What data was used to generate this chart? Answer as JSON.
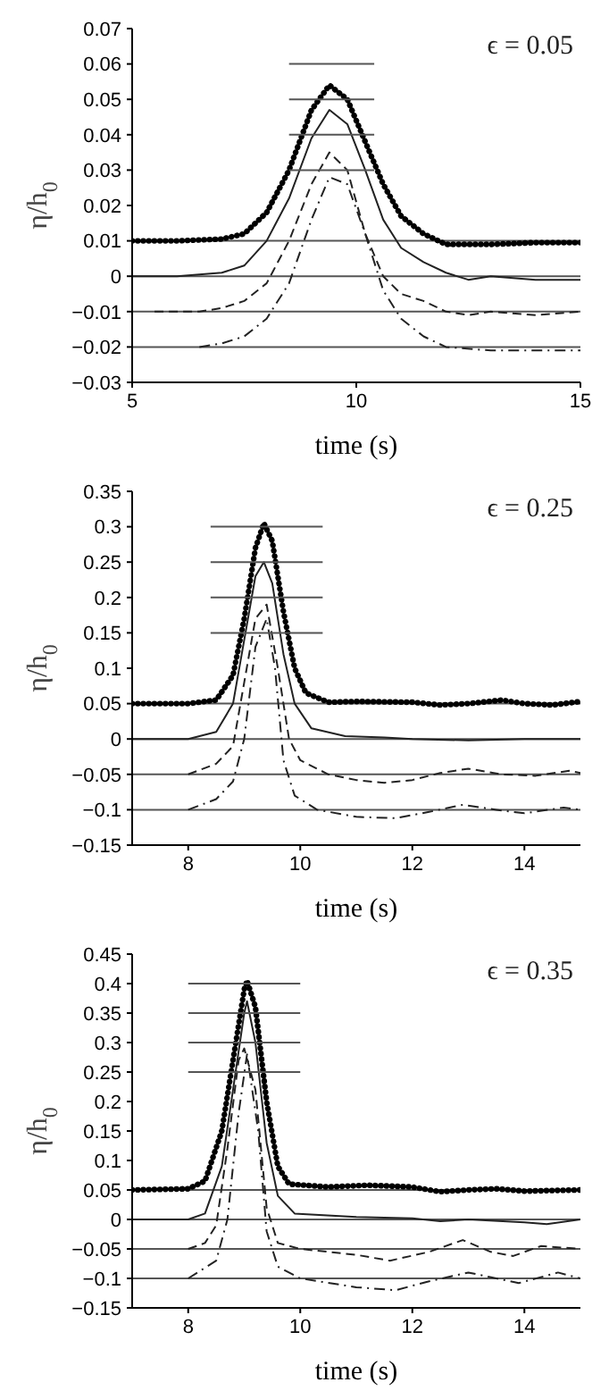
{
  "chart_data": [
    {
      "type": "line",
      "xlabel": "time (s)",
      "ylabel": "η/h$_{0}$",
      "annotations": [
        "ϵ = 0.05"
      ],
      "xlim": [
        5,
        15
      ],
      "xticks": [
        5,
        10,
        15
      ],
      "ylim": [
        -0.03,
        0.07
      ],
      "yticks": [
        -0.03,
        -0.02,
        -0.01,
        0,
        0.01,
        0.02,
        0.03,
        0.04,
        0.05,
        0.06,
        0.07
      ],
      "grid": false,
      "legend": false,
      "ref_lines": [
        {
          "axis": "y",
          "value": 0.01,
          "color": "#555555"
        },
        {
          "axis": "y",
          "value": 0,
          "color": "#555555"
        },
        {
          "axis": "y",
          "value": -0.01,
          "color": "#555555"
        },
        {
          "axis": "y",
          "value": -0.02,
          "color": "#555555"
        }
      ],
      "series": [
        {
          "color": "#000000",
          "line_style": "dotted",
          "x": [
            5,
            6,
            7,
            7.5,
            8,
            8.5,
            9,
            9.4,
            9.8,
            10.2,
            10.6,
            11,
            11.5,
            12,
            13,
            14,
            15
          ],
          "values": [
            0.01,
            0.01,
            0.0105,
            0.012,
            0.018,
            0.03,
            0.047,
            0.054,
            0.05,
            0.038,
            0.026,
            0.017,
            0.012,
            0.009,
            0.009,
            0.0095,
            0.0095
          ]
        },
        {
          "color": "#222222",
          "line_style": "solid",
          "x": [
            5,
            6,
            7,
            7.5,
            8,
            8.5,
            9,
            9.4,
            9.8,
            10.2,
            10.6,
            11,
            11.5,
            12,
            12.5,
            13,
            14,
            15
          ],
          "values": [
            0,
            0,
            0.001,
            0.003,
            0.01,
            0.022,
            0.039,
            0.047,
            0.043,
            0.03,
            0.016,
            0.008,
            0.004,
            0.001,
            -0.001,
            0,
            -0.001,
            -0.001
          ]
        },
        {
          "color": "#222222",
          "line_style": "dashed",
          "x": [
            5.5,
            6.5,
            7,
            7.5,
            8,
            8.5,
            9,
            9.4,
            9.8,
            10.2,
            10.6,
            11,
            11.5,
            12,
            12.5,
            13,
            14,
            15
          ],
          "values": [
            -0.01,
            -0.01,
            -0.009,
            -0.007,
            -0.002,
            0.01,
            0.026,
            0.035,
            0.03,
            0.012,
            0,
            -0.005,
            -0.007,
            -0.01,
            -0.011,
            -0.01,
            -0.011,
            -0.01
          ]
        },
        {
          "color": "#222222",
          "line_style": "dashdot",
          "x": [
            6.5,
            7,
            7.5,
            8,
            8.5,
            9,
            9.4,
            9.8,
            10.2,
            10.6,
            11,
            11.5,
            12,
            13,
            14,
            15
          ],
          "values": [
            -0.02,
            -0.019,
            -0.017,
            -0.012,
            -0.002,
            0.016,
            0.028,
            0.026,
            0.012,
            -0.004,
            -0.012,
            -0.017,
            -0.02,
            -0.021,
            -0.021,
            -0.021
          ]
        },
        {
          "color": "#555555",
          "line_style": "solid",
          "x": [
            8.5,
            10.4
          ],
          "values": [
            0.06,
            0.06
          ]
        },
        {
          "color": "#555555",
          "line_style": "solid",
          "x": [
            8.5,
            10.4
          ],
          "values": [
            0.05,
            0.05
          ]
        },
        {
          "color": "#555555",
          "line_style": "solid",
          "x": [
            8.5,
            10.4
          ],
          "values": [
            0.04,
            0.04
          ]
        },
        {
          "color": "#555555",
          "line_style": "solid",
          "x": [
            8.5,
            10.4
          ],
          "values": [
            0.03,
            0.03
          ]
        }
      ]
    },
    {
      "type": "line",
      "xlabel": "time (s)",
      "ylabel": "η/h$_{0}$",
      "annotations": [
        "ϵ = 0.25"
      ],
      "xlim": [
        7,
        15
      ],
      "xticks": [
        8,
        10,
        12,
        14
      ],
      "ylim": [
        -0.15,
        0.35
      ],
      "yticks": [
        -0.15,
        -0.1,
        -0.05,
        0,
        0.05,
        0.1,
        0.15,
        0.2,
        0.25,
        0.3,
        0.35
      ],
      "grid": false,
      "legend": false,
      "ref_lines": [
        {
          "axis": "y",
          "value": 0.05,
          "color": "#555555"
        },
        {
          "axis": "y",
          "value": 0,
          "color": "#555555"
        },
        {
          "axis": "y",
          "value": -0.05,
          "color": "#555555"
        },
        {
          "axis": "y",
          "value": -0.1,
          "color": "#555555"
        }
      ],
      "series": [
        {
          "color": "#000000",
          "line_style": "dotted",
          "x": [
            7,
            8,
            8.5,
            8.8,
            9,
            9.2,
            9.35,
            9.5,
            9.7,
            9.9,
            10.1,
            10.5,
            11,
            12,
            12.5,
            13,
            13.6,
            14,
            14.5,
            15
          ],
          "values": [
            0.05,
            0.05,
            0.055,
            0.09,
            0.17,
            0.27,
            0.305,
            0.28,
            0.18,
            0.1,
            0.065,
            0.052,
            0.053,
            0.052,
            0.048,
            0.05,
            0.055,
            0.05,
            0.048,
            0.053
          ]
        },
        {
          "color": "#222222",
          "line_style": "solid",
          "x": [
            7,
            8,
            8.5,
            8.8,
            9,
            9.2,
            9.35,
            9.5,
            9.7,
            9.9,
            10.2,
            10.8,
            11.5,
            12,
            13,
            14,
            15
          ],
          "values": [
            0,
            0,
            0.01,
            0.05,
            0.14,
            0.23,
            0.25,
            0.22,
            0.12,
            0.05,
            0.015,
            0.004,
            0.002,
            0,
            -0.002,
            0,
            0
          ]
        },
        {
          "color": "#222222",
          "line_style": "dashed",
          "x": [
            8,
            8.5,
            8.8,
            9,
            9.2,
            9.4,
            9.6,
            9.8,
            10,
            10.5,
            11,
            11.5,
            12,
            12.5,
            13,
            13.6,
            14.2,
            14.8,
            15
          ],
          "values": [
            -0.05,
            -0.035,
            -0.01,
            0.08,
            0.17,
            0.19,
            0.1,
            0,
            -0.03,
            -0.05,
            -0.058,
            -0.062,
            -0.058,
            -0.048,
            -0.042,
            -0.05,
            -0.052,
            -0.045,
            -0.048
          ]
        },
        {
          "color": "#222222",
          "line_style": "dashdot",
          "x": [
            8,
            8.5,
            8.8,
            9,
            9.2,
            9.4,
            9.55,
            9.7,
            9.9,
            10.3,
            11,
            11.7,
            12.3,
            12.9,
            13.5,
            14,
            14.7,
            15
          ],
          "values": [
            -0.1,
            -0.085,
            -0.06,
            0,
            0.13,
            0.17,
            0.1,
            -0.03,
            -0.08,
            -0.1,
            -0.11,
            -0.112,
            -0.103,
            -0.093,
            -0.1,
            -0.105,
            -0.097,
            -0.1
          ]
        },
        {
          "color": "#555555",
          "line_style": "solid",
          "x": [
            8.4,
            10.4
          ],
          "values": [
            0.3,
            0.3
          ]
        },
        {
          "color": "#555555",
          "line_style": "solid",
          "x": [
            8.4,
            10.4
          ],
          "values": [
            0.25,
            0.25
          ]
        },
        {
          "color": "#555555",
          "line_style": "solid",
          "x": [
            8.4,
            10.4
          ],
          "values": [
            0.2,
            0.2
          ]
        },
        {
          "color": "#555555",
          "line_style": "solid",
          "x": [
            8.4,
            10.4
          ],
          "values": [
            0.15,
            0.15
          ]
        }
      ]
    },
    {
      "type": "line",
      "xlabel": "time (s)",
      "ylabel": "η/h$_{0}$",
      "annotations": [
        "ϵ = 0.35"
      ],
      "xlim": [
        7,
        15
      ],
      "xticks": [
        8,
        10,
        12,
        14
      ],
      "ylim": [
        -0.15,
        0.45
      ],
      "yticks": [
        -0.15,
        -0.1,
        -0.05,
        0,
        0.05,
        0.1,
        0.15,
        0.2,
        0.25,
        0.3,
        0.35,
        0.4,
        0.45
      ],
      "grid": false,
      "legend": false,
      "ref_lines": [
        {
          "axis": "y",
          "value": 0.05,
          "color": "#555555"
        },
        {
          "axis": "y",
          "value": 0,
          "color": "#555555"
        },
        {
          "axis": "y",
          "value": -0.05,
          "color": "#555555"
        },
        {
          "axis": "y",
          "value": -0.1,
          "color": "#555555"
        }
      ],
      "series": [
        {
          "color": "#000000",
          "line_style": "dotted",
          "x": [
            7,
            8,
            8.3,
            8.6,
            8.8,
            9,
            9.05,
            9.2,
            9.4,
            9.6,
            9.8,
            10.5,
            11.2,
            12,
            12.5,
            13,
            13.5,
            14,
            15
          ],
          "values": [
            0.05,
            0.052,
            0.065,
            0.15,
            0.27,
            0.39,
            0.405,
            0.36,
            0.2,
            0.09,
            0.06,
            0.055,
            0.058,
            0.055,
            0.047,
            0.05,
            0.052,
            0.048,
            0.05
          ]
        },
        {
          "color": "#222222",
          "line_style": "solid",
          "x": [
            7,
            8,
            8.3,
            8.6,
            8.8,
            9,
            9.05,
            9.2,
            9.4,
            9.6,
            9.9,
            11,
            12,
            12.5,
            13,
            14,
            14.4,
            15
          ],
          "values": [
            0,
            0,
            0.01,
            0.09,
            0.22,
            0.35,
            0.37,
            0.3,
            0.13,
            0.04,
            0.01,
            0.004,
            0.002,
            -0.003,
            0,
            -0.005,
            -0.008,
            0
          ]
        },
        {
          "color": "#222222",
          "line_style": "dashed",
          "x": [
            8,
            8.3,
            8.5,
            8.7,
            8.9,
            9,
            9.2,
            9.4,
            9.6,
            10,
            11,
            11.6,
            12.3,
            12.9,
            13.4,
            13.8,
            14.3,
            15
          ],
          "values": [
            -0.05,
            -0.04,
            -0.01,
            0.12,
            0.27,
            0.29,
            0.22,
            0.02,
            -0.04,
            -0.05,
            -0.06,
            -0.07,
            -0.055,
            -0.035,
            -0.055,
            -0.062,
            -0.045,
            -0.05
          ]
        },
        {
          "color": "#222222",
          "line_style": "dashdot",
          "x": [
            8,
            8.5,
            8.7,
            8.9,
            9.05,
            9.25,
            9.4,
            9.6,
            10,
            11,
            11.7,
            12.3,
            13,
            13.5,
            13.9,
            14.6,
            15
          ],
          "values": [
            -0.1,
            -0.07,
            0,
            0.18,
            0.28,
            0.15,
            -0.02,
            -0.08,
            -0.1,
            -0.115,
            -0.12,
            -0.105,
            -0.09,
            -0.1,
            -0.108,
            -0.09,
            -0.1
          ]
        },
        {
          "color": "#555555",
          "line_style": "solid",
          "x": [
            8,
            10
          ],
          "values": [
            0.4,
            0.4
          ]
        },
        {
          "color": "#555555",
          "line_style": "solid",
          "x": [
            8,
            10
          ],
          "values": [
            0.35,
            0.35
          ]
        },
        {
          "color": "#555555",
          "line_style": "solid",
          "x": [
            8,
            10
          ],
          "values": [
            0.3,
            0.3
          ]
        },
        {
          "color": "#555555",
          "line_style": "solid",
          "x": [
            8,
            10
          ],
          "values": [
            0.25,
            0.25
          ]
        }
      ]
    }
  ]
}
